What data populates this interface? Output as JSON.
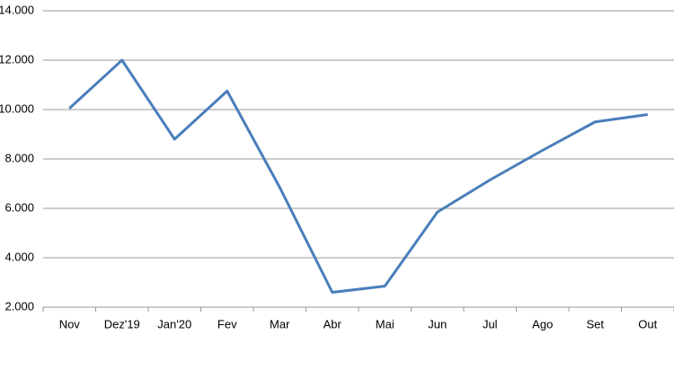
{
  "chart_data": {
    "type": "line",
    "categories": [
      "Nov",
      "Dez'19",
      "Jan'20",
      "Fev",
      "Mar",
      "Abr",
      "Mai",
      "Jun",
      "Jul",
      "Ago",
      "Set",
      "Out"
    ],
    "values": [
      10050,
      12000,
      8800,
      10750,
      6850,
      2600,
      2850,
      5850,
      7150,
      8350,
      9500,
      9800
    ],
    "color": "#4a7ebb",
    "ylim": [
      2000,
      14000
    ],
    "yticks": [
      {
        "value": 2000,
        "label": "2.000"
      },
      {
        "value": 4000,
        "label": "4.000"
      },
      {
        "value": 6000,
        "label": "6.000"
      },
      {
        "value": 8000,
        "label": "8.000"
      },
      {
        "value": 10000,
        "label": "10.000"
      },
      {
        "value": 12000,
        "label": "12.000"
      },
      {
        "value": 14000,
        "label": "14.000"
      }
    ],
    "grid": true
  }
}
